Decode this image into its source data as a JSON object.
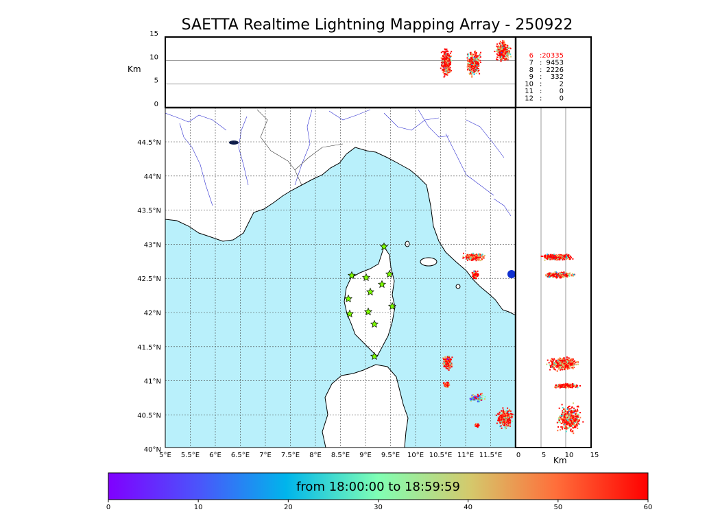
{
  "title": "SAETTA Realtime Lightning Mapping Array - 250922",
  "top_panel": {
    "ylabel": "Km",
    "yticks": [
      "15",
      "10",
      "5",
      "0"
    ]
  },
  "side_panel": {
    "xlabel": "Km",
    "xticks": [
      "0",
      "5",
      "10",
      "15"
    ]
  },
  "map": {
    "lon_labels": [
      "5°E",
      "5.5°E",
      "6°E",
      "6.5°E",
      "7°E",
      "7.5°E",
      "8°E",
      "8.5°E",
      "9°E",
      "9.5°E",
      "10°E",
      "10.5°E",
      "11°E",
      "11.5°E"
    ],
    "lat_labels": [
      "44.5°N",
      "44°N",
      "43.5°N",
      "43°N",
      "42.5°N",
      "42°N",
      "41.5°N",
      "41°N",
      "40.5°N",
      "40°N"
    ],
    "sea_color": "#b9f0fb",
    "land_color": "#ffffff",
    "station_color": "#7cfc00"
  },
  "station_counts": [
    {
      "stations": "6",
      "count": "20335",
      "highlight": true
    },
    {
      "stations": "7",
      "count": "9453",
      "highlight": false
    },
    {
      "stations": "8",
      "count": "2226",
      "highlight": false
    },
    {
      "stations": "9",
      "count": "332",
      "highlight": false
    },
    {
      "stations": "10",
      "count": "2",
      "highlight": false
    },
    {
      "stations": "11",
      "count": "0",
      "highlight": false
    },
    {
      "stations": "12",
      "count": "0",
      "highlight": false
    }
  ],
  "colorbar": {
    "label": "from 18:00:00 to 18:59:59",
    "ticks": [
      "0",
      "10",
      "20",
      "30",
      "40",
      "50",
      "60"
    ]
  }
}
